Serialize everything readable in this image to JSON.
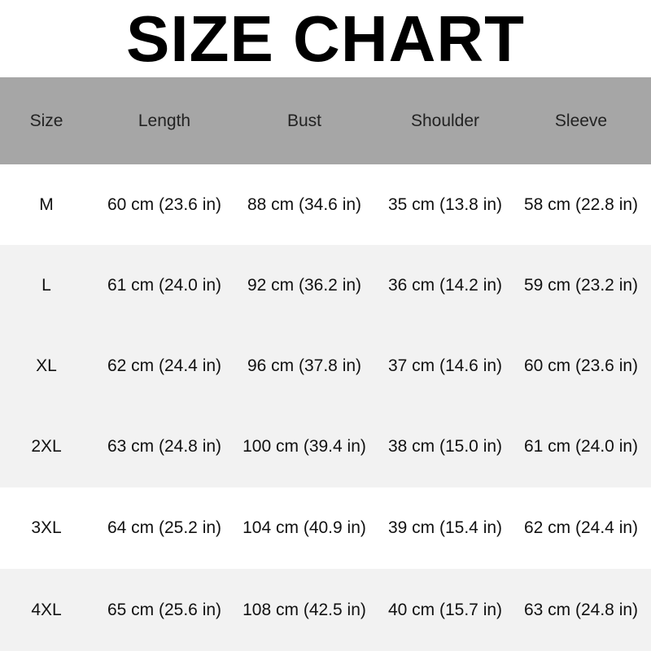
{
  "title": "SIZE CHART",
  "colors": {
    "header_bg": "#a6a6a6",
    "row_alt_bg": "#f2f2f2",
    "row_bg": "#ffffff"
  },
  "table": {
    "headers": [
      "Size",
      "Length",
      "Bust",
      "Shoulder",
      "Sleeve"
    ],
    "rows": [
      [
        "M",
        "60 cm (23.6 in)",
        "88 cm (34.6 in)",
        "35 cm (13.8 in)",
        "58 cm (22.8 in)"
      ],
      [
        "L",
        "61 cm (24.0 in)",
        "92 cm (36.2 in)",
        "36 cm (14.2 in)",
        "59 cm (23.2 in)"
      ],
      [
        "XL",
        "62 cm (24.4 in)",
        "96 cm (37.8 in)",
        "37 cm (14.6 in)",
        "60 cm (23.6 in)"
      ],
      [
        "2XL",
        "63 cm (24.8 in)",
        "100 cm (39.4 in)",
        "38 cm (15.0 in)",
        "61 cm (24.0 in)"
      ],
      [
        "3XL",
        "64 cm (25.2 in)",
        "104 cm (40.9 in)",
        "39 cm (15.4 in)",
        "62 cm (24.4 in)"
      ],
      [
        "4XL",
        "65 cm (25.6 in)",
        "108 cm (42.5 in)",
        "40 cm (15.7 in)",
        "63 cm (24.8 in)"
      ]
    ]
  }
}
